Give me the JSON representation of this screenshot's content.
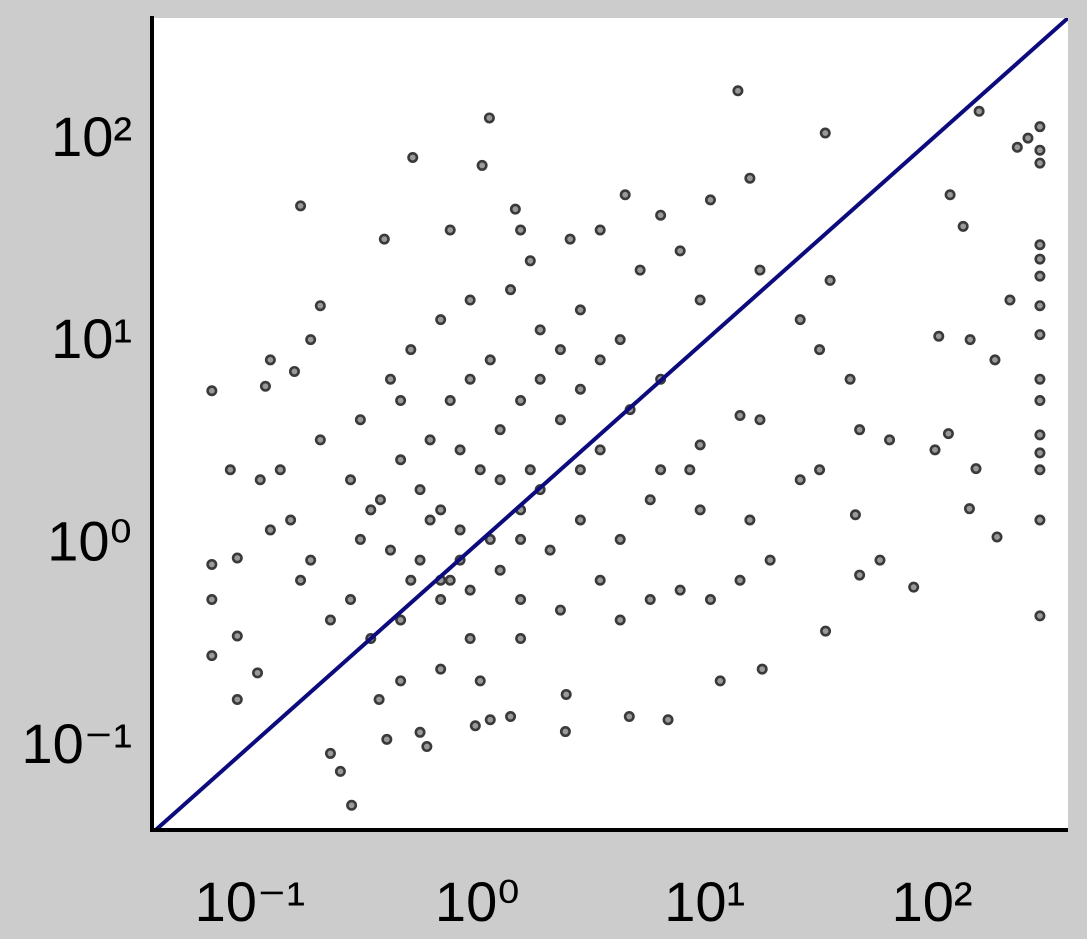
{
  "chart_data": {
    "type": "scatter",
    "x": [
      0.068,
      0.068,
      0.068,
      0.068,
      0.088,
      0.088,
      0.088,
      0.108,
      0.117,
      0.167,
      0.204,
      0.157,
      0.52,
      1.13,
      1.05,
      14.0,
      33.9,
      161,
      298,
      298,
      298,
      264,
      237,
      298,
      298,
      298,
      298,
      298,
      298,
      298,
      298,
      298,
      298,
      298,
      298,
      137,
      120,
      107,
      118,
      156,
      146,
      193,
      83,
      34,
      17.9,
      11.7,
      6.9,
      4.66,
      2.44,
      2.46,
      0.28,
      0.25,
      0.226,
      0.4,
      0.6,
      0.37,
      0.56,
      0.98,
      1.4,
      1.14,
      0.46,
      0.62,
      0.84,
      0.76,
      1.03,
      1.26,
      1.55,
      1.89,
      2.32,
      2.84,
      3.47,
      0.375,
      0.306,
      0.277,
      0.46,
      0.56,
      0.69,
      0.93,
      1.55,
      2.09,
      2.84,
      4.25,
      5.76,
      9.55,
      15.8,
      26.3,
      32,
      48,
      65,
      46,
      59,
      48,
      17.5,
      14.3,
      9.55,
      6.4,
      10.6,
      7.8,
      5.76,
      14.3,
      19.4,
      4.25,
      3.47,
      2.32,
      1.55,
      1.03,
      0.69,
      0.46,
      0.34,
      0.226,
      0.185,
      0.151,
      0.136,
      0.204,
      0.277,
      0.306,
      0.415,
      0.51,
      0.69,
      0.93,
      1.4,
      1.71,
      2.56,
      3.47,
      4.47,
      6.4,
      10.6,
      15.8,
      7.8,
      5.2,
      9.55,
      17.5,
      26.3,
      35.6,
      32,
      43.6,
      1.89,
      2.84,
      4.25,
      3.47,
      1.55,
      0.76,
      0.39,
      1.47,
      2.32,
      6.4,
      4.7,
      8.6,
      2.84,
      1.71,
      1.55,
      1.14,
      0.56,
      0.46,
      0.76,
      0.93,
      1.14,
      0.62,
      0.84,
      1.26,
      1.89,
      1.55,
      0.84,
      0.69,
      0.93,
      1.26,
      0.51,
      0.415,
      0.34,
      0.69,
      0.123,
      0.185,
      0.082,
      0.111,
      0.123,
      0.167,
      147,
      189,
      220,
      103
    ],
    "values": [
      5.7,
      0.79,
      0.53,
      0.28,
      0.17,
      0.35,
      0.85,
      0.23,
      6.0,
      46.7,
      15,
      7.1,
      81,
      127,
      74,
      173,
      107,
      137,
      115,
      88,
      76,
      101,
      91,
      30,
      21,
      15,
      10.8,
      6.5,
      5.1,
      3.45,
      2.32,
      1.31,
      0.44,
      2.81,
      25.5,
      37,
      53,
      10.6,
      3.5,
      2.35,
      1.49,
      1.08,
      0.61,
      0.37,
      0.24,
      0.21,
      0.135,
      0.14,
      0.118,
      0.18,
      0.051,
      0.075,
      0.092,
      0.108,
      0.0995,
      0.17,
      0.117,
      0.126,
      0.14,
      0.135,
      2.6,
      1.31,
      0.83,
      0.66,
      2.32,
      3.66,
      5.1,
      6.5,
      4.1,
      5.8,
      2.91,
      1.65,
      1.05,
      0.53,
      0.42,
      0.83,
      0.53,
      0.34,
      0.53,
      0.93,
      1.31,
      1.05,
      1.65,
      1.47,
      1.31,
      2.07,
      2.32,
      3.66,
      3.26,
      1.39,
      0.83,
      0.7,
      4.1,
      4.3,
      3.08,
      2.32,
      0.53,
      0.59,
      0.53,
      0.66,
      0.83,
      0.42,
      0.66,
      0.47,
      0.34,
      0.21,
      0.24,
      0.21,
      0.34,
      0.42,
      0.83,
      1.31,
      2.32,
      3.26,
      2.07,
      4.1,
      6.5,
      9.1,
      12.8,
      16,
      18,
      25,
      32,
      35.5,
      53,
      42,
      50,
      64,
      28,
      22.5,
      16,
      22.5,
      12.8,
      20,
      9.1,
      6.5,
      11.4,
      14.3,
      10.2,
      8.1,
      35.5,
      35.5,
      32,
      45,
      9.1,
      6.5,
      4.6,
      2.32,
      2.32,
      2.32,
      1.47,
      1.05,
      1.85,
      5.1,
      5.1,
      6.5,
      8.1,
      3.26,
      2.91,
      2.07,
      1.85,
      1.05,
      1.17,
      0.66,
      0.59,
      0.74,
      0.66,
      0.93,
      1.47,
      1.47,
      8.1,
      10.2,
      2.32,
      2.07,
      1.17,
      0.66,
      10.2,
      8.1,
      16,
      2.91
    ],
    "color": "#3a3a3a",
    "xscale": "log",
    "yscale": "log",
    "xlim": [
      0.0371,
      396
    ],
    "ylim": [
      0.0385,
      396
    ],
    "xticks": [
      {
        "value": 0.1,
        "label": "10⁻¹"
      },
      {
        "value": 1,
        "label": "10⁰"
      },
      {
        "value": 10,
        "label": "10¹"
      },
      {
        "value": 100,
        "label": "10²"
      }
    ],
    "yticks": [
      {
        "value": 0.1,
        "label": "10⁻¹"
      },
      {
        "value": 1,
        "label": "10⁰"
      },
      {
        "value": 10,
        "label": "10¹"
      },
      {
        "value": 100,
        "label": "10²"
      }
    ],
    "identity_line": true,
    "line_color": "#0b0b7e"
  }
}
